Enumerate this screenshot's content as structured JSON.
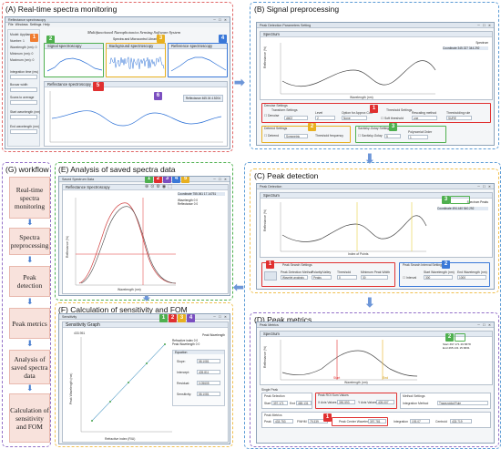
{
  "panels": {
    "a": {
      "title": "(A) Real-time spectra monitoring"
    },
    "b": {
      "title": "(B) Signal preprocessing"
    },
    "c": {
      "title": "(C) Peak detection"
    },
    "d": {
      "title": "(D) Peak metrics"
    },
    "e": {
      "title": "(E) Analysis of saved spectra data"
    },
    "f": {
      "title": "(F) Calculation of sensitivity and FOM"
    },
    "g": {
      "title": "(G) workflow"
    }
  },
  "workflow": {
    "steps": [
      "Real-time spectra monitoring",
      "Spectra preprocessing",
      "Peak detection",
      "Peak metrics",
      "Analysis of saved spectra data",
      "Calculation of sensitivity and FOM"
    ]
  },
  "win_a": {
    "title": "Reflectance spectroscopy",
    "menu": [
      "File",
      "Windows",
      "Settings",
      "Help"
    ],
    "app_title": "Multifunctional Nanophotonics Sensing Software System",
    "sub_title": "Spectra and Microcontrol Libraries",
    "sidebar": [
      "Model: Appliance",
      "Number: 1",
      "Wavelength (nm): 0",
      "Minimum (nm): 0",
      "Maximum (nm): 0",
      "Integration time (ms)",
      "Boxcar width",
      "Scans to average",
      "Start wavelength (nm)",
      "End wavelength (nm)"
    ],
    "cards": [
      "Signal spectroscopy",
      "Background spectroscopy",
      "Reference spectroscopy"
    ],
    "main_chart": "Reflectance spectroscopy",
    "legend": [
      "Reflectance",
      "465.04",
      "4.5204"
    ],
    "badges": [
      "1",
      "2",
      "3",
      "4",
      "5",
      "6"
    ]
  },
  "win_b": {
    "title": "Peak Detection Parameters Setting",
    "section": "Spectrum",
    "legend_title": "Spectrum",
    "legend_row": [
      "Coordinate",
      "345.327",
      "344.292"
    ],
    "xlabel": "Wavelength (nm)",
    "ylabel": "Reflectance (%)",
    "groups": {
      "denoise": "Denoise Settings",
      "transform": "Transform Settings",
      "threshold": "Threshold Settings",
      "detrend": "Detrend Settings",
      "smoothing": "Savitzky-Golay Settings"
    },
    "fields": {
      "denoise_check": "Denoise",
      "wavelet": "db02",
      "level_label": "Level",
      "level": "2",
      "option_label": "Option for Approx Coef",
      "option": "None",
      "soft_label": "Soft threshold",
      "rescale_label": "Rescaling method",
      "rescale": "one",
      "rule_label": "Thresholding rule",
      "rule": "SURE",
      "detrend_check": "Detrend",
      "symmetric": "Symmetric",
      "thr_freq_label": "Threshold frequency",
      "sg_check": "Savitzky-Golay",
      "window": "5",
      "poly_label": "Polynomial Order",
      "poly": "1"
    },
    "badges": [
      "1",
      "2",
      "3"
    ]
  },
  "win_c": {
    "title": "Peak Detection",
    "section": "Spectrum",
    "legend_title": "Spectrum",
    "legend_extra": "Peaks",
    "legend_row": [
      "Coordinate",
      "494.440",
      "540.292"
    ],
    "xlabel": "Index of Points",
    "ylabel": "Reflectance (%)",
    "peak_search": "Peak Search Settings",
    "peak_method_label": "Peak Detection Method",
    "peak_method": "Wavelet analysis",
    "polarity_label": "Polarity/Valley",
    "polarity": "Peaks",
    "threshold_label": "Threshold",
    "threshold": "0",
    "min_width_label": "Minimum Peak Width",
    "min_width": "30",
    "interval": "Peak Search Interval Settings",
    "interval_check": "Interval",
    "start_wl_label": "Start Wavelength (nm)",
    "start_wl": "300",
    "end_wl_label": "End Wavelength (nm)",
    "end_wl": "1000",
    "badges": [
      "1",
      "2",
      "3"
    ]
  },
  "win_d": {
    "title": "Peak Metrics",
    "section": "Spectrum",
    "legend": [
      [
        "Start",
        "397.171",
        "26.5878"
      ],
      [
        "End",
        "465.131",
        "15.6831"
      ]
    ],
    "xlabel": "Wavelength (nm)",
    "ylabel": "Reflectance (%)",
    "start_marker": "Start",
    "end_marker": "End",
    "single_peak": "Single Peak",
    "peak_sel": "Peak Selection",
    "start_label": "Start",
    "start_val": "397.171",
    "end_label": "End",
    "end_val": "465.131",
    "sel_label": "Peak ROI Sum Values",
    "xval_label": "X Axis Values",
    "xval": "390.593",
    "yval_label": "Y Axis Values",
    "yval": "405.007",
    "method_head": "Method Settings",
    "method_label": "Integration Method",
    "method": "Trapezoidal Rule",
    "metrics_head": "Peak Metrics",
    "metrics": [
      [
        "Peak",
        "433.753"
      ],
      [
        "FWHM",
        "79.339"
      ],
      [
        "Peak Center Wavelength",
        "397.781"
      ],
      [
        "Integration",
        "193.07"
      ],
      [
        "Centroid",
        "433.719"
      ]
    ],
    "badges": [
      "1",
      "2"
    ]
  },
  "win_e": {
    "title": "Saved Spectrum Data",
    "section": "Reflectance Spectroscopy",
    "legend_title": "Coordinate",
    "legend_vals": [
      "755.061",
      "17.14751"
    ],
    "legend_rows": [
      [
        "Wavelength",
        "0",
        "0"
      ],
      [
        "Reflectance",
        "0",
        "0"
      ]
    ],
    "xlabel": "Wavelength (nm)",
    "ylabel": "Reflectance (%)",
    "badges": [
      "1",
      "2",
      "3",
      "4",
      "5"
    ]
  },
  "win_f": {
    "title": "Sensitivity",
    "section": "Sensitivity Graph",
    "chart_top": "433.951",
    "xlabel": "Refractive index (RIU)",
    "ylabel": "Peak Wavelength (nm)",
    "legend_title": "Peak Wavelength",
    "legend_rows": [
      [
        "Refractive index",
        "0",
        "0"
      ],
      [
        "Peak Wavelength",
        "0",
        "0"
      ]
    ],
    "params_head": "Equation",
    "params": [
      [
        "Slope:",
        "58.1081"
      ],
      [
        "Intercept:",
        "405.811"
      ],
      [
        "Residual:",
        "0.05605"
      ],
      [
        "Sensitivity:",
        "58.1081"
      ]
    ],
    "badges": [
      "1",
      "2",
      "3",
      "4"
    ]
  },
  "colors": {
    "red": "#e03030",
    "green": "#4fb04f",
    "yellow": "#e8b020",
    "blue": "#3a78d8",
    "orange": "#f07c30",
    "purple": "#7b4fc0"
  }
}
